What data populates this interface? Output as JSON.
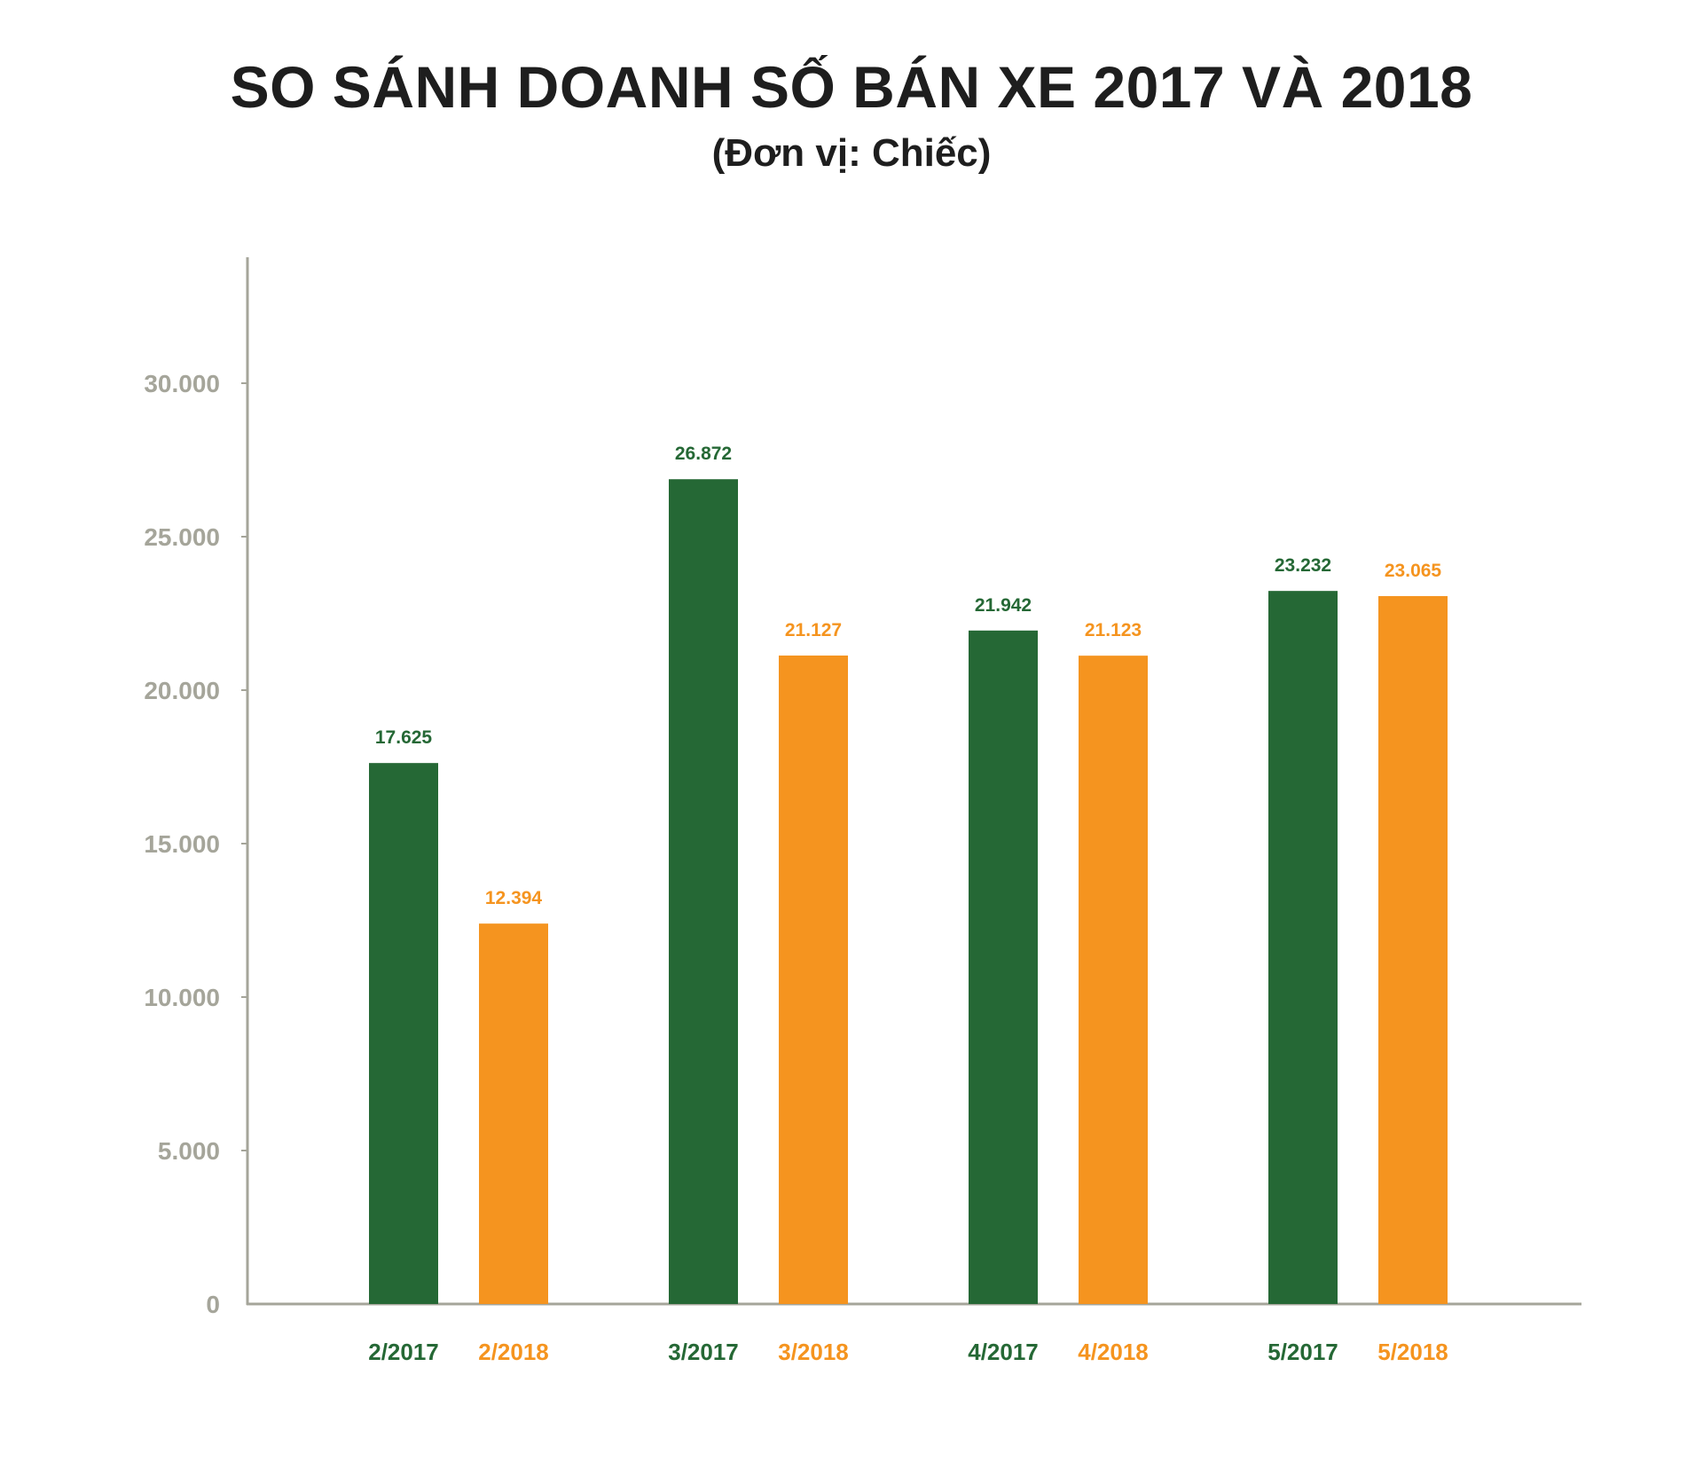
{
  "chart_data": {
    "type": "bar",
    "title": "SO SÁNH DOANH SỐ BÁN XE 2017 VÀ 2018",
    "subtitle": "(Đơn vị: Chiếc)",
    "xlabel": "",
    "ylabel": "",
    "ylim": [
      0,
      35000
    ],
    "grid": false,
    "yticks": [
      0,
      5000,
      10000,
      15000,
      20000,
      25000,
      30000
    ],
    "ytick_labels": [
      "0",
      "5.000",
      "10.000",
      "15.000",
      "20.000",
      "25.000",
      "30.000"
    ],
    "groups": [
      "2",
      "3",
      "4",
      "5"
    ],
    "series": [
      {
        "name": "2017",
        "color": "#256835",
        "categories": [
          "2/2017",
          "3/2017",
          "4/2017",
          "5/2017"
        ],
        "values": [
          17625,
          26872,
          21942,
          23232
        ],
        "value_labels": [
          "17.625",
          "26.872",
          "21.942",
          "23.232"
        ]
      },
      {
        "name": "2018",
        "color": "#f5941f",
        "categories": [
          "2/2018",
          "3/2018",
          "4/2018",
          "5/2018"
        ],
        "values": [
          12394,
          21127,
          21123,
          23065
        ],
        "value_labels": [
          "12.394",
          "21.127",
          "21.123",
          "23.065"
        ]
      }
    ],
    "axis_color": "#a5a59a"
  }
}
